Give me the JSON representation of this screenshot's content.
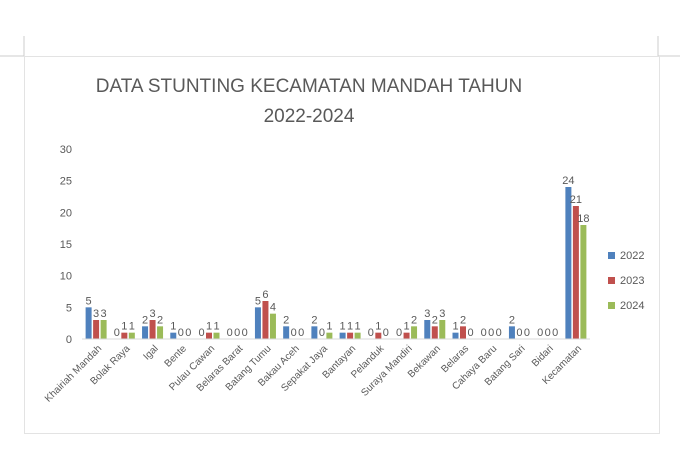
{
  "chart_data": {
    "type": "bar",
    "title": "DATA STUNTING KECAMATAN MANDAH TAHUN\n2022-2024",
    "xlabel": "",
    "ylabel": "",
    "ylim": [
      0,
      30
    ],
    "yticks": [
      "0",
      "5",
      "10",
      "15",
      "20",
      "25",
      "30"
    ],
    "grid": false,
    "legend_position": "right",
    "categories": [
      "Khairiah Mandah",
      "Bolak Raya",
      "Igal",
      "Bente",
      "Pulau Cawan",
      "Belaras Barat",
      "Batang Tumu",
      "Bakau Aceh",
      "Sepakat Jaya",
      "Bantayan",
      "Pelanduk",
      "Suraya Mandiri",
      "Bekawan",
      "Belaras",
      "Cahaya Baru",
      "Batang Sari",
      "Bidari",
      "Kecamatan"
    ],
    "series": [
      {
        "name": "2022",
        "color": "#4f81bd",
        "values": [
          5,
          0,
          2,
          1,
          0,
          0,
          5,
          2,
          2,
          1,
          0,
          0,
          3,
          1,
          0,
          2,
          0,
          24
        ]
      },
      {
        "name": "2023",
        "color": "#c0504d",
        "values": [
          3,
          1,
          3,
          0,
          1,
          0,
          6,
          0,
          0,
          1,
          1,
          1,
          2,
          2,
          0,
          0,
          0,
          21
        ]
      },
      {
        "name": "2024",
        "color": "#9bbb59",
        "values": [
          3,
          1,
          2,
          0,
          1,
          0,
          4,
          0,
          1,
          1,
          0,
          2,
          3,
          0,
          0,
          0,
          0,
          18
        ]
      }
    ]
  }
}
